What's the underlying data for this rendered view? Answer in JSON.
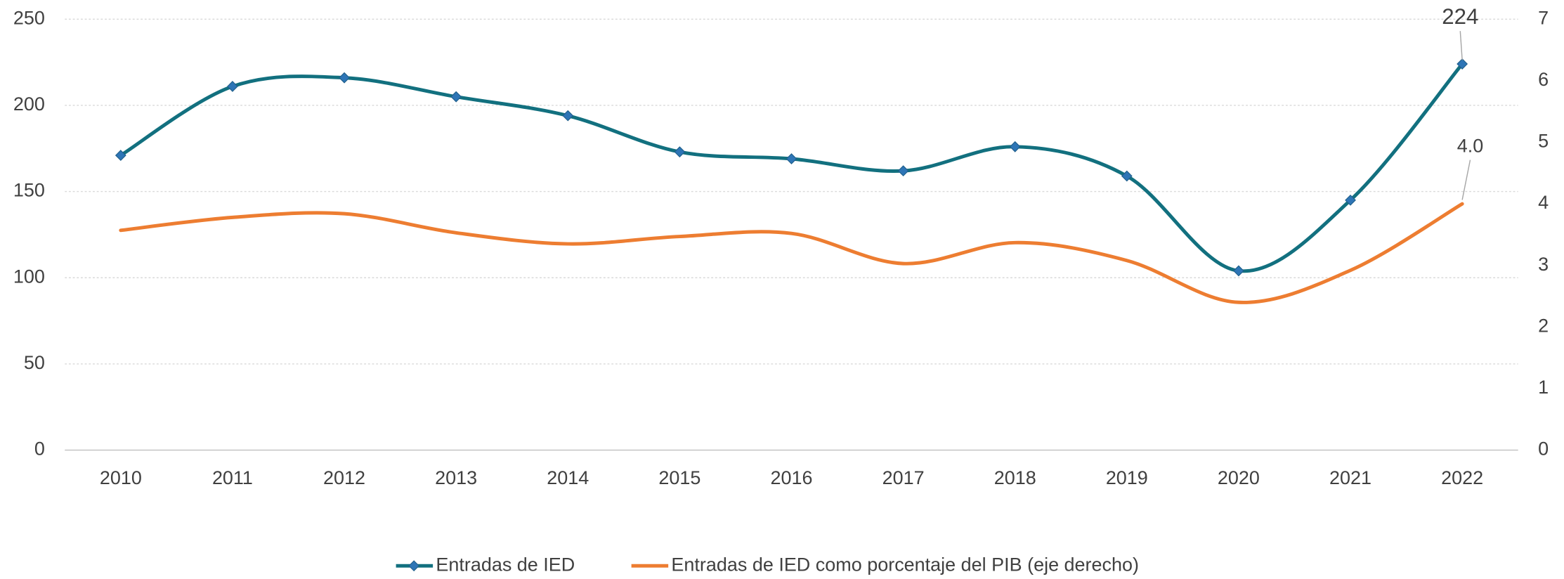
{
  "chart_data": {
    "type": "line",
    "categories": [
      "2010",
      "2011",
      "2012",
      "2013",
      "2014",
      "2015",
      "2016",
      "2017",
      "2018",
      "2019",
      "2020",
      "2021",
      "2022"
    ],
    "series": [
      {
        "name": "Entradas de IED",
        "color": "#12707f",
        "marker": "diamond",
        "marker_color": "#2e75b6",
        "values": [
          171,
          211,
          216,
          205,
          194,
          173,
          169,
          162,
          176,
          159,
          104,
          145,
          224
        ],
        "value_labels": [
          null,
          null,
          null,
          null,
          null,
          null,
          null,
          null,
          null,
          null,
          null,
          null,
          "224"
        ]
      },
      {
        "name": "Entradas de IED como porcentaje del PIB (eje derecho)",
        "color": "#ed7d31",
        "axis": "y2",
        "values": [
          3.57,
          3.78,
          3.84,
          3.53,
          3.35,
          3.47,
          3.52,
          3.03,
          3.37,
          3.08,
          2.4,
          2.92,
          4.0
        ],
        "value_labels": [
          null,
          null,
          null,
          null,
          null,
          null,
          null,
          null,
          null,
          null,
          null,
          null,
          "4.0"
        ]
      }
    ],
    "ylim": [
      0,
      250
    ],
    "yticks": [
      0,
      50,
      100,
      150,
      200,
      250
    ],
    "y2lim": [
      0,
      7
    ],
    "y2ticks": [
      0,
      1,
      2,
      3,
      4,
      5,
      6,
      7
    ],
    "grid": true,
    "smooth": true,
    "legend": "bottom"
  }
}
